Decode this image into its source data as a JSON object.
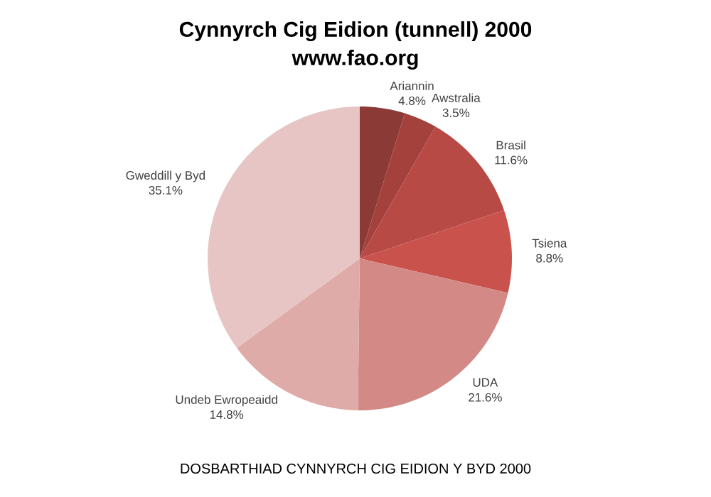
{
  "chart_data": {
    "type": "pie",
    "title": "Cynnyrch Cig Eidion (tunnell) 2000",
    "subtitle": "www.fao.org",
    "categories": [
      "Ariannin",
      "Awstralia",
      "Brasil",
      "Tsiena",
      "UDA",
      "Undeb Ewropeaidd",
      "Gweddill y Byd"
    ],
    "values": [
      4.8,
      3.5,
      11.6,
      8.8,
      21.6,
      14.8,
      35.1
    ],
    "value_labels": [
      "4.8%",
      "3.5%",
      "11.6%",
      "8.8%",
      "21.6%",
      "14.8%",
      "35.1%"
    ],
    "colors": [
      "#8b3a36",
      "#a5413d",
      "#b84a45",
      "#c9524c",
      "#d38a87",
      "#dfaba8",
      "#e6c5c4"
    ],
    "annotations": [
      "DOSBARTHIAD CYNNYRCH CIG EIDION Y BYD 2000"
    ]
  }
}
